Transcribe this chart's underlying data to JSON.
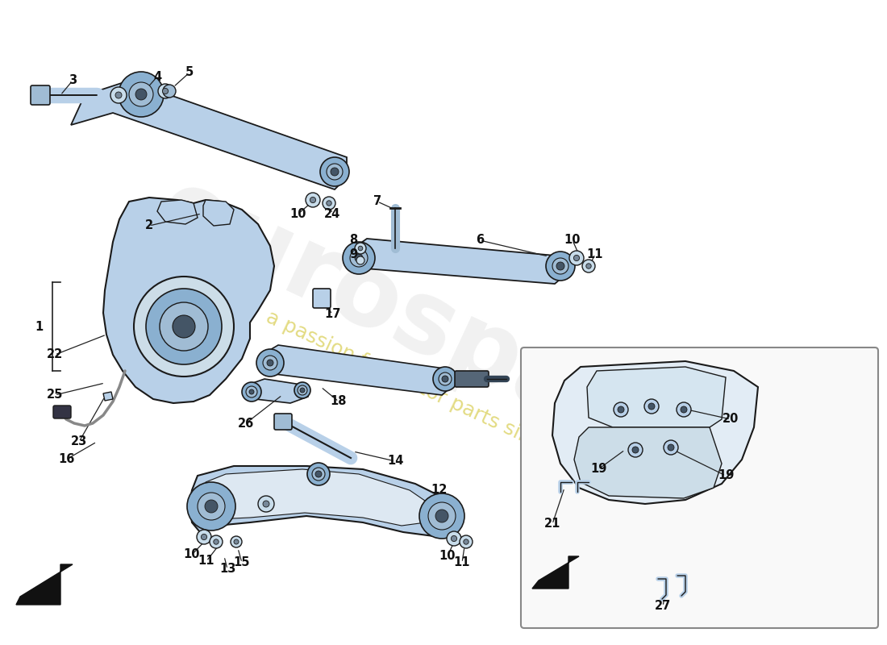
{
  "bg_color": "#ffffff",
  "light_blue": "#b8d0e8",
  "med_blue": "#8ab0d0",
  "dark_blue": "#6090b8",
  "steel_blue": "#a0bcd4",
  "line_color": "#1a1a1a",
  "label_color": "#111111",
  "wm_gray": "#cccccc",
  "wm_yellow": "#d4c840"
}
